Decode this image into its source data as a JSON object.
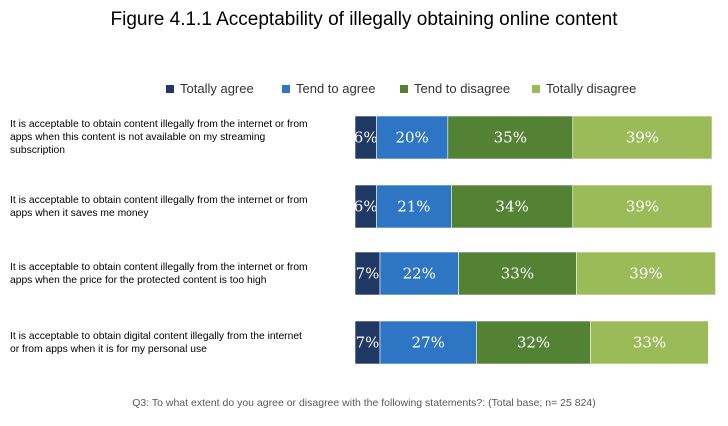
{
  "chart_data": {
    "type": "bar",
    "orientation": "horizontal",
    "stacked": true,
    "title": "Figure 4.1.1 Acceptability of illegally obtaining online content",
    "categories": [
      "It is acceptable to obtain content illegally from the internet or from apps when this content is not available on my streaming subscription",
      "It is acceptable to obtain content illegally from the internet or from apps when it saves me money",
      "It is acceptable to obtain  content illegally from the internet or from apps when the price for the protected content is too high",
      "It is acceptable to obtain digital content illegally from the internet or from apps when it is for my personal use"
    ],
    "category_lines": [
      [
        "It is acceptable to obtain content illegally from the internet or from",
        "apps when this content is not available on my streaming",
        "subscription"
      ],
      [
        "It is acceptable to obtain content illegally from the internet or from",
        "apps when it saves me money"
      ],
      [
        "It is acceptable to obtain  content illegally from the internet or from",
        "apps when the price for the protected content is too high"
      ],
      [
        "It is acceptable to obtain digital content illegally from the internet",
        "or from apps when it is for my personal use"
      ]
    ],
    "series": [
      {
        "name": "Totally agree",
        "color": "#203864",
        "values": [
          6,
          6,
          7,
          7
        ]
      },
      {
        "name": "Tend to agree",
        "color": "#2e75c4",
        "values": [
          20,
          21,
          22,
          27
        ]
      },
      {
        "name": "Tend to disagree",
        "color": "#548235",
        "values": [
          35,
          34,
          33,
          32
        ]
      },
      {
        "name": "Totally disagree",
        "color": "#9bbb59",
        "values": [
          39,
          39,
          39,
          33
        ]
      }
    ],
    "value_suffix": "%",
    "xlim": [
      0,
      100
    ],
    "legend_position": "top",
    "grid": false,
    "note": "Q3:  To what extent do you agree or disagree with the following statements?: (Total base; n= 25 824)"
  }
}
